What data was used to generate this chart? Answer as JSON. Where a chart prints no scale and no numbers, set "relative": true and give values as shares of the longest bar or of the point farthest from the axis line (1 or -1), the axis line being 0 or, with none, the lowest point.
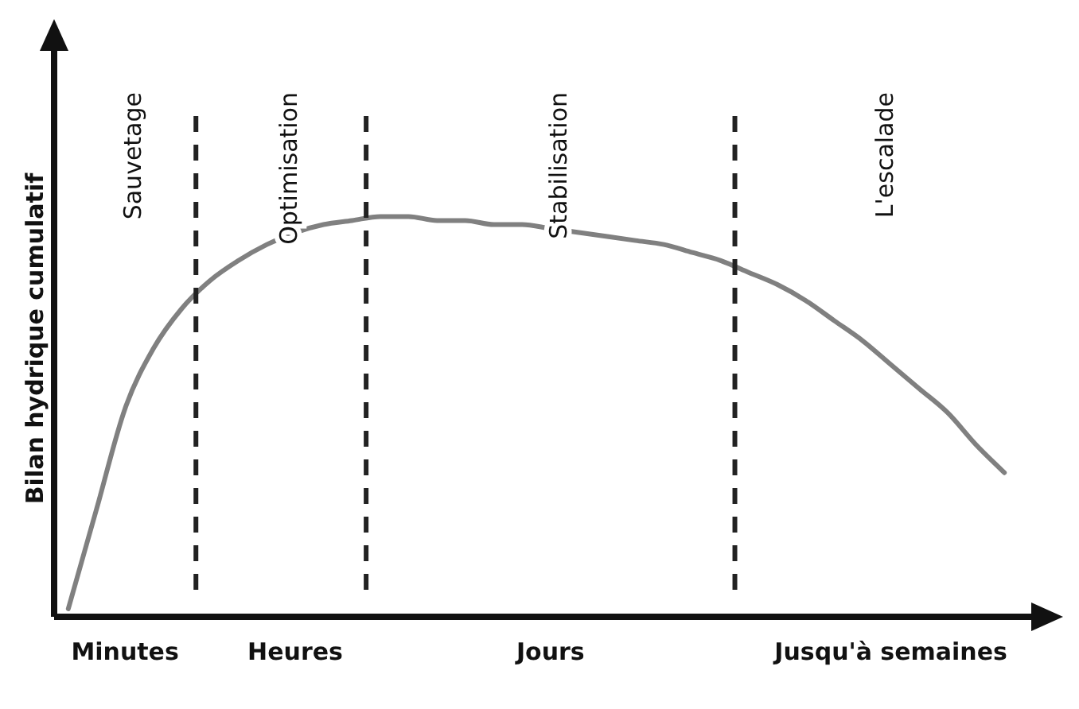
{
  "chart_data": {
    "type": "line",
    "relative": true,
    "ylabel": "Bilan hydrique cumulatif",
    "categories": [
      null,
      null,
      "Minutes",
      null,
      null,
      null,
      null,
      null,
      "Heures",
      null,
      null,
      null,
      null,
      null,
      null,
      null,
      null,
      "Jours",
      null,
      null,
      null,
      null,
      null,
      null,
      null,
      null,
      null,
      null,
      null,
      "Jusqu'à semaines",
      null,
      null,
      null,
      null
    ],
    "series": [
      {
        "color": "#808080",
        "values": [
          0.02,
          0.27,
          0.52,
          0.67,
          0.77,
          0.84,
          0.89,
          0.93,
          0.96,
          0.98,
          0.99,
          1.0,
          1.0,
          0.99,
          0.99,
          0.98,
          0.98,
          0.97,
          0.96,
          0.95,
          0.94,
          0.93,
          0.91,
          0.89,
          0.86,
          0.83,
          0.79,
          0.74,
          0.69,
          0.63,
          0.57,
          0.51,
          0.43,
          0.36
        ]
      }
    ],
    "annotations": [
      "Sauvetage",
      "Optimisation",
      "Stabilisation",
      "L'escalade"
    ],
    "grid": false,
    "legend": false,
    "marker": "none",
    "line_style": "solid"
  }
}
